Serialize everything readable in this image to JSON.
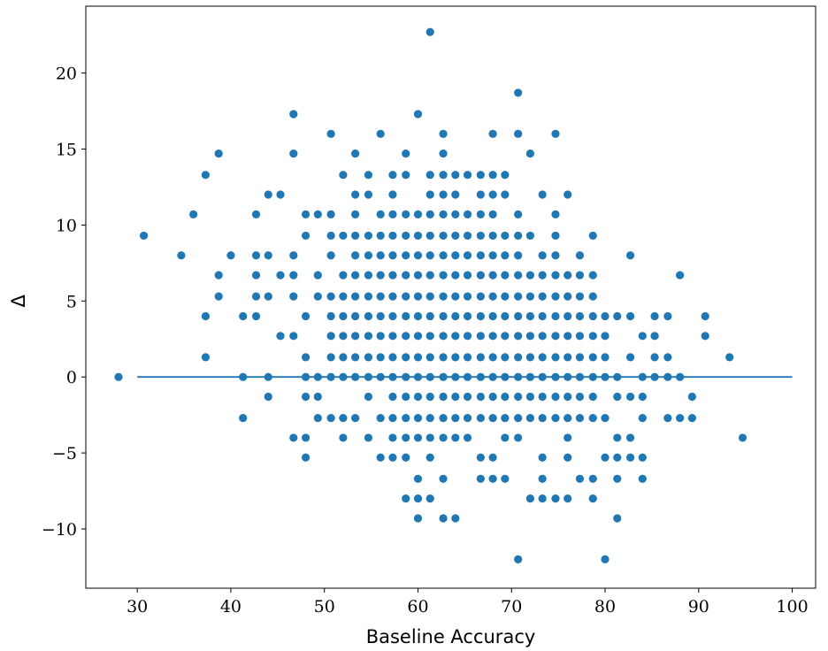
{
  "chart_data": {
    "type": "scatter",
    "xlabel": "Baseline Accuracy",
    "ylabel": "Δ",
    "xlim": [
      24.5,
      102.5
    ],
    "ylim": [
      -13.9,
      24.4
    ],
    "xticks": [
      30,
      40,
      50,
      60,
      70,
      80,
      90,
      100
    ],
    "yticks": [
      -10,
      -5,
      0,
      5,
      10,
      15,
      20
    ],
    "ytick_labels": [
      "−10",
      "−5",
      "0",
      "5",
      "10",
      "15",
      "20"
    ],
    "grid": false,
    "marker_color": "#1f77b4",
    "reference_line": {
      "x": [
        30,
        100
      ],
      "y": [
        0,
        0
      ]
    },
    "points": [
      [
        28.0,
        0
      ],
      [
        30.7,
        9.3
      ],
      [
        34.7,
        8.0
      ],
      [
        36.0,
        10.7
      ],
      [
        37.3,
        13.3
      ],
      [
        37.3,
        4.0
      ],
      [
        37.3,
        1.3
      ],
      [
        38.7,
        14.7
      ],
      [
        38.7,
        6.7
      ],
      [
        38.7,
        5.3
      ],
      [
        40.0,
        8.0
      ],
      [
        41.3,
        4.0
      ],
      [
        41.3,
        0
      ],
      [
        41.3,
        -2.7
      ],
      [
        42.7,
        10.7
      ],
      [
        42.7,
        8.0
      ],
      [
        42.7,
        6.7
      ],
      [
        42.7,
        5.3
      ],
      [
        42.7,
        4.0
      ],
      [
        44.0,
        12.0
      ],
      [
        44.0,
        8.0
      ],
      [
        44.0,
        5.3
      ],
      [
        44.0,
        0
      ],
      [
        44.0,
        -1.3
      ],
      [
        45.3,
        12.0
      ],
      [
        45.3,
        6.7
      ],
      [
        45.3,
        2.7
      ],
      [
        46.7,
        17.3
      ],
      [
        46.7,
        14.7
      ],
      [
        46.7,
        8.0
      ],
      [
        46.7,
        6.7
      ],
      [
        46.7,
        5.3
      ],
      [
        46.7,
        2.7
      ],
      [
        46.7,
        -4.0
      ],
      [
        48.0,
        10.7
      ],
      [
        48.0,
        9.3
      ],
      [
        48.0,
        4.0
      ],
      [
        48.0,
        1.3
      ],
      [
        48.0,
        0
      ],
      [
        48.0,
        -1.3
      ],
      [
        48.0,
        -4.0
      ],
      [
        48.0,
        -5.3
      ],
      [
        49.3,
        10.7
      ],
      [
        49.3,
        6.7
      ],
      [
        49.3,
        5.3
      ],
      [
        49.3,
        0
      ],
      [
        49.3,
        -1.3
      ],
      [
        49.3,
        -2.7
      ],
      [
        50.7,
        16.0
      ],
      [
        50.7,
        10.7
      ],
      [
        50.7,
        9.3
      ],
      [
        50.7,
        8.0
      ],
      [
        50.7,
        5.3
      ],
      [
        50.7,
        4.0
      ],
      [
        50.7,
        2.7
      ],
      [
        50.7,
        1.3
      ],
      [
        50.7,
        0
      ],
      [
        50.7,
        -2.7
      ],
      [
        52.0,
        13.3
      ],
      [
        52.0,
        9.3
      ],
      [
        52.0,
        6.7
      ],
      [
        52.0,
        5.3
      ],
      [
        52.0,
        4.0
      ],
      [
        52.0,
        2.7
      ],
      [
        52.0,
        1.3
      ],
      [
        52.0,
        0
      ],
      [
        52.0,
        -2.7
      ],
      [
        52.0,
        -4.0
      ],
      [
        53.3,
        14.7
      ],
      [
        53.3,
        12.0
      ],
      [
        53.3,
        10.7
      ],
      [
        53.3,
        9.3
      ],
      [
        53.3,
        8.0
      ],
      [
        53.3,
        6.7
      ],
      [
        53.3,
        5.3
      ],
      [
        53.3,
        4.0
      ],
      [
        53.3,
        2.7
      ],
      [
        53.3,
        1.3
      ],
      [
        53.3,
        0
      ],
      [
        53.3,
        -2.7
      ],
      [
        54.7,
        13.3
      ],
      [
        54.7,
        12.0
      ],
      [
        54.7,
        9.3
      ],
      [
        54.7,
        8.0
      ],
      [
        54.7,
        6.7
      ],
      [
        54.7,
        5.3
      ],
      [
        54.7,
        4.0
      ],
      [
        54.7,
        2.7
      ],
      [
        54.7,
        1.3
      ],
      [
        54.7,
        0
      ],
      [
        54.7,
        -1.3
      ],
      [
        54.7,
        -4.0
      ],
      [
        56.0,
        16.0
      ],
      [
        56.0,
        10.7
      ],
      [
        56.0,
        9.3
      ],
      [
        56.0,
        8.0
      ],
      [
        56.0,
        6.7
      ],
      [
        56.0,
        5.3
      ],
      [
        56.0,
        4.0
      ],
      [
        56.0,
        2.7
      ],
      [
        56.0,
        1.3
      ],
      [
        56.0,
        0
      ],
      [
        56.0,
        -2.7
      ],
      [
        56.0,
        -5.3
      ],
      [
        57.3,
        13.3
      ],
      [
        57.3,
        12.0
      ],
      [
        57.3,
        10.7
      ],
      [
        57.3,
        9.3
      ],
      [
        57.3,
        8.0
      ],
      [
        57.3,
        6.7
      ],
      [
        57.3,
        5.3
      ],
      [
        57.3,
        4.0
      ],
      [
        57.3,
        2.7
      ],
      [
        57.3,
        1.3
      ],
      [
        57.3,
        0
      ],
      [
        57.3,
        -1.3
      ],
      [
        57.3,
        -2.7
      ],
      [
        57.3,
        -4.0
      ],
      [
        57.3,
        -5.3
      ],
      [
        58.7,
        14.7
      ],
      [
        58.7,
        13.3
      ],
      [
        58.7,
        10.7
      ],
      [
        58.7,
        9.3
      ],
      [
        58.7,
        8.0
      ],
      [
        58.7,
        6.7
      ],
      [
        58.7,
        5.3
      ],
      [
        58.7,
        4.0
      ],
      [
        58.7,
        2.7
      ],
      [
        58.7,
        1.3
      ],
      [
        58.7,
        0
      ],
      [
        58.7,
        -1.3
      ],
      [
        58.7,
        -2.7
      ],
      [
        58.7,
        -4.0
      ],
      [
        58.7,
        -5.3
      ],
      [
        58.7,
        -8.0
      ],
      [
        60.0,
        17.3
      ],
      [
        60.0,
        10.7
      ],
      [
        60.0,
        9.3
      ],
      [
        60.0,
        8.0
      ],
      [
        60.0,
        6.7
      ],
      [
        60.0,
        5.3
      ],
      [
        60.0,
        4.0
      ],
      [
        60.0,
        2.7
      ],
      [
        60.0,
        1.3
      ],
      [
        60.0,
        0
      ],
      [
        60.0,
        -1.3
      ],
      [
        60.0,
        -2.7
      ],
      [
        60.0,
        -4.0
      ],
      [
        60.0,
        -6.7
      ],
      [
        60.0,
        -8.0
      ],
      [
        60.0,
        -9.3
      ],
      [
        61.3,
        22.7
      ],
      [
        61.3,
        13.3
      ],
      [
        61.3,
        12.0
      ],
      [
        61.3,
        10.7
      ],
      [
        61.3,
        9.3
      ],
      [
        61.3,
        8.0
      ],
      [
        61.3,
        6.7
      ],
      [
        61.3,
        5.3
      ],
      [
        61.3,
        4.0
      ],
      [
        61.3,
        2.7
      ],
      [
        61.3,
        1.3
      ],
      [
        61.3,
        0
      ],
      [
        61.3,
        -1.3
      ],
      [
        61.3,
        -2.7
      ],
      [
        61.3,
        -4.0
      ],
      [
        61.3,
        -5.3
      ],
      [
        61.3,
        -8.0
      ],
      [
        62.7,
        16.0
      ],
      [
        62.7,
        14.7
      ],
      [
        62.7,
        13.3
      ],
      [
        62.7,
        12.0
      ],
      [
        62.7,
        10.7
      ],
      [
        62.7,
        9.3
      ],
      [
        62.7,
        8.0
      ],
      [
        62.7,
        6.7
      ],
      [
        62.7,
        5.3
      ],
      [
        62.7,
        4.0
      ],
      [
        62.7,
        2.7
      ],
      [
        62.7,
        1.3
      ],
      [
        62.7,
        0
      ],
      [
        62.7,
        -1.3
      ],
      [
        62.7,
        -2.7
      ],
      [
        62.7,
        -4.0
      ],
      [
        62.7,
        -6.7
      ],
      [
        62.7,
        -9.3
      ],
      [
        64.0,
        13.3
      ],
      [
        64.0,
        12.0
      ],
      [
        64.0,
        10.7
      ],
      [
        64.0,
        9.3
      ],
      [
        64.0,
        8.0
      ],
      [
        64.0,
        6.7
      ],
      [
        64.0,
        5.3
      ],
      [
        64.0,
        4.0
      ],
      [
        64.0,
        2.7
      ],
      [
        64.0,
        1.3
      ],
      [
        64.0,
        0
      ],
      [
        64.0,
        -1.3
      ],
      [
        64.0,
        -2.7
      ],
      [
        64.0,
        -4.0
      ],
      [
        64.0,
        -9.3
      ],
      [
        65.3,
        13.3
      ],
      [
        65.3,
        10.7
      ],
      [
        65.3,
        9.3
      ],
      [
        65.3,
        8.0
      ],
      [
        65.3,
        6.7
      ],
      [
        65.3,
        5.3
      ],
      [
        65.3,
        4.0
      ],
      [
        65.3,
        2.7
      ],
      [
        65.3,
        1.3
      ],
      [
        65.3,
        0
      ],
      [
        65.3,
        -1.3
      ],
      [
        65.3,
        -2.7
      ],
      [
        65.3,
        -4.0
      ],
      [
        66.7,
        13.3
      ],
      [
        66.7,
        12.0
      ],
      [
        66.7,
        10.7
      ],
      [
        66.7,
        9.3
      ],
      [
        66.7,
        8.0
      ],
      [
        66.7,
        6.7
      ],
      [
        66.7,
        5.3
      ],
      [
        66.7,
        4.0
      ],
      [
        66.7,
        2.7
      ],
      [
        66.7,
        1.3
      ],
      [
        66.7,
        0
      ],
      [
        66.7,
        -1.3
      ],
      [
        66.7,
        -2.7
      ],
      [
        66.7,
        -5.3
      ],
      [
        66.7,
        -6.7
      ],
      [
        68.0,
        16.0
      ],
      [
        68.0,
        13.3
      ],
      [
        68.0,
        12.0
      ],
      [
        68.0,
        10.7
      ],
      [
        68.0,
        9.3
      ],
      [
        68.0,
        8.0
      ],
      [
        68.0,
        6.7
      ],
      [
        68.0,
        5.3
      ],
      [
        68.0,
        4.0
      ],
      [
        68.0,
        2.7
      ],
      [
        68.0,
        1.3
      ],
      [
        68.0,
        0
      ],
      [
        68.0,
        -1.3
      ],
      [
        68.0,
        -2.7
      ],
      [
        68.0,
        -5.3
      ],
      [
        68.0,
        -6.7
      ],
      [
        69.3,
        13.3
      ],
      [
        69.3,
        12.0
      ],
      [
        69.3,
        9.3
      ],
      [
        69.3,
        8.0
      ],
      [
        69.3,
        6.7
      ],
      [
        69.3,
        5.3
      ],
      [
        69.3,
        4.0
      ],
      [
        69.3,
        2.7
      ],
      [
        69.3,
        1.3
      ],
      [
        69.3,
        0
      ],
      [
        69.3,
        -1.3
      ],
      [
        69.3,
        -2.7
      ],
      [
        69.3,
        -4.0
      ],
      [
        69.3,
        -6.7
      ],
      [
        70.7,
        18.7
      ],
      [
        70.7,
        16.0
      ],
      [
        70.7,
        10.7
      ],
      [
        70.7,
        9.3
      ],
      [
        70.7,
        8.0
      ],
      [
        70.7,
        6.7
      ],
      [
        70.7,
        5.3
      ],
      [
        70.7,
        4.0
      ],
      [
        70.7,
        2.7
      ],
      [
        70.7,
        1.3
      ],
      [
        70.7,
        0
      ],
      [
        70.7,
        -1.3
      ],
      [
        70.7,
        -2.7
      ],
      [
        70.7,
        -4.0
      ],
      [
        70.7,
        -12.0
      ],
      [
        72.0,
        14.7
      ],
      [
        72.0,
        9.3
      ],
      [
        72.0,
        6.7
      ],
      [
        72.0,
        5.3
      ],
      [
        72.0,
        4.0
      ],
      [
        72.0,
        2.7
      ],
      [
        72.0,
        1.3
      ],
      [
        72.0,
        0
      ],
      [
        72.0,
        -1.3
      ],
      [
        72.0,
        -2.7
      ],
      [
        72.0,
        -8.0
      ],
      [
        73.3,
        12.0
      ],
      [
        73.3,
        8.0
      ],
      [
        73.3,
        6.7
      ],
      [
        73.3,
        5.3
      ],
      [
        73.3,
        4.0
      ],
      [
        73.3,
        2.7
      ],
      [
        73.3,
        1.3
      ],
      [
        73.3,
        0
      ],
      [
        73.3,
        -1.3
      ],
      [
        73.3,
        -2.7
      ],
      [
        73.3,
        -5.3
      ],
      [
        73.3,
        -6.7
      ],
      [
        73.3,
        -8.0
      ],
      [
        74.7,
        16.0
      ],
      [
        74.7,
        10.7
      ],
      [
        74.7,
        9.3
      ],
      [
        74.7,
        8.0
      ],
      [
        74.7,
        6.7
      ],
      [
        74.7,
        5.3
      ],
      [
        74.7,
        4.0
      ],
      [
        74.7,
        2.7
      ],
      [
        74.7,
        1.3
      ],
      [
        74.7,
        0
      ],
      [
        74.7,
        -1.3
      ],
      [
        74.7,
        -2.7
      ],
      [
        74.7,
        -8.0
      ],
      [
        76.0,
        12.0
      ],
      [
        76.0,
        6.7
      ],
      [
        76.0,
        5.3
      ],
      [
        76.0,
        4.0
      ],
      [
        76.0,
        2.7
      ],
      [
        76.0,
        1.3
      ],
      [
        76.0,
        0
      ],
      [
        76.0,
        -1.3
      ],
      [
        76.0,
        -2.7
      ],
      [
        76.0,
        -4.0
      ],
      [
        76.0,
        -5.3
      ],
      [
        76.0,
        -8.0
      ],
      [
        77.3,
        8.0
      ],
      [
        77.3,
        6.7
      ],
      [
        77.3,
        5.3
      ],
      [
        77.3,
        4.0
      ],
      [
        77.3,
        2.7
      ],
      [
        77.3,
        1.3
      ],
      [
        77.3,
        0
      ],
      [
        77.3,
        -1.3
      ],
      [
        77.3,
        -2.7
      ],
      [
        77.3,
        -6.7
      ],
      [
        78.7,
        9.3
      ],
      [
        78.7,
        6.7
      ],
      [
        78.7,
        5.3
      ],
      [
        78.7,
        4.0
      ],
      [
        78.7,
        2.7
      ],
      [
        78.7,
        1.3
      ],
      [
        78.7,
        0
      ],
      [
        78.7,
        -1.3
      ],
      [
        78.7,
        -2.7
      ],
      [
        78.7,
        -6.7
      ],
      [
        78.7,
        -8.0
      ],
      [
        80.0,
        4.0
      ],
      [
        80.0,
        2.7
      ],
      [
        80.0,
        1.3
      ],
      [
        80.0,
        0
      ],
      [
        80.0,
        -2.7
      ],
      [
        80.0,
        -5.3
      ],
      [
        80.0,
        -12.0
      ],
      [
        81.3,
        4.0
      ],
      [
        81.3,
        0
      ],
      [
        81.3,
        -1.3
      ],
      [
        81.3,
        -4.0
      ],
      [
        81.3,
        -5.3
      ],
      [
        81.3,
        -6.7
      ],
      [
        81.3,
        -9.3
      ],
      [
        82.7,
        8.0
      ],
      [
        82.7,
        4.0
      ],
      [
        82.7,
        1.3
      ],
      [
        82.7,
        -1.3
      ],
      [
        82.7,
        -4.0
      ],
      [
        82.7,
        -5.3
      ],
      [
        84.0,
        2.7
      ],
      [
        84.0,
        0
      ],
      [
        84.0,
        -1.3
      ],
      [
        84.0,
        -2.7
      ],
      [
        84.0,
        -5.3
      ],
      [
        84.0,
        -6.7
      ],
      [
        85.3,
        4.0
      ],
      [
        85.3,
        2.7
      ],
      [
        85.3,
        1.3
      ],
      [
        85.3,
        0
      ],
      [
        86.7,
        4.0
      ],
      [
        86.7,
        1.3
      ],
      [
        86.7,
        0
      ],
      [
        86.7,
        -2.7
      ],
      [
        88.0,
        6.7
      ],
      [
        88.0,
        0
      ],
      [
        88.0,
        -2.7
      ],
      [
        89.3,
        -1.3
      ],
      [
        89.3,
        -2.7
      ],
      [
        90.7,
        4.0
      ],
      [
        90.7,
        2.7
      ],
      [
        93.3,
        1.3
      ],
      [
        94.7,
        -4.0
      ]
    ]
  }
}
